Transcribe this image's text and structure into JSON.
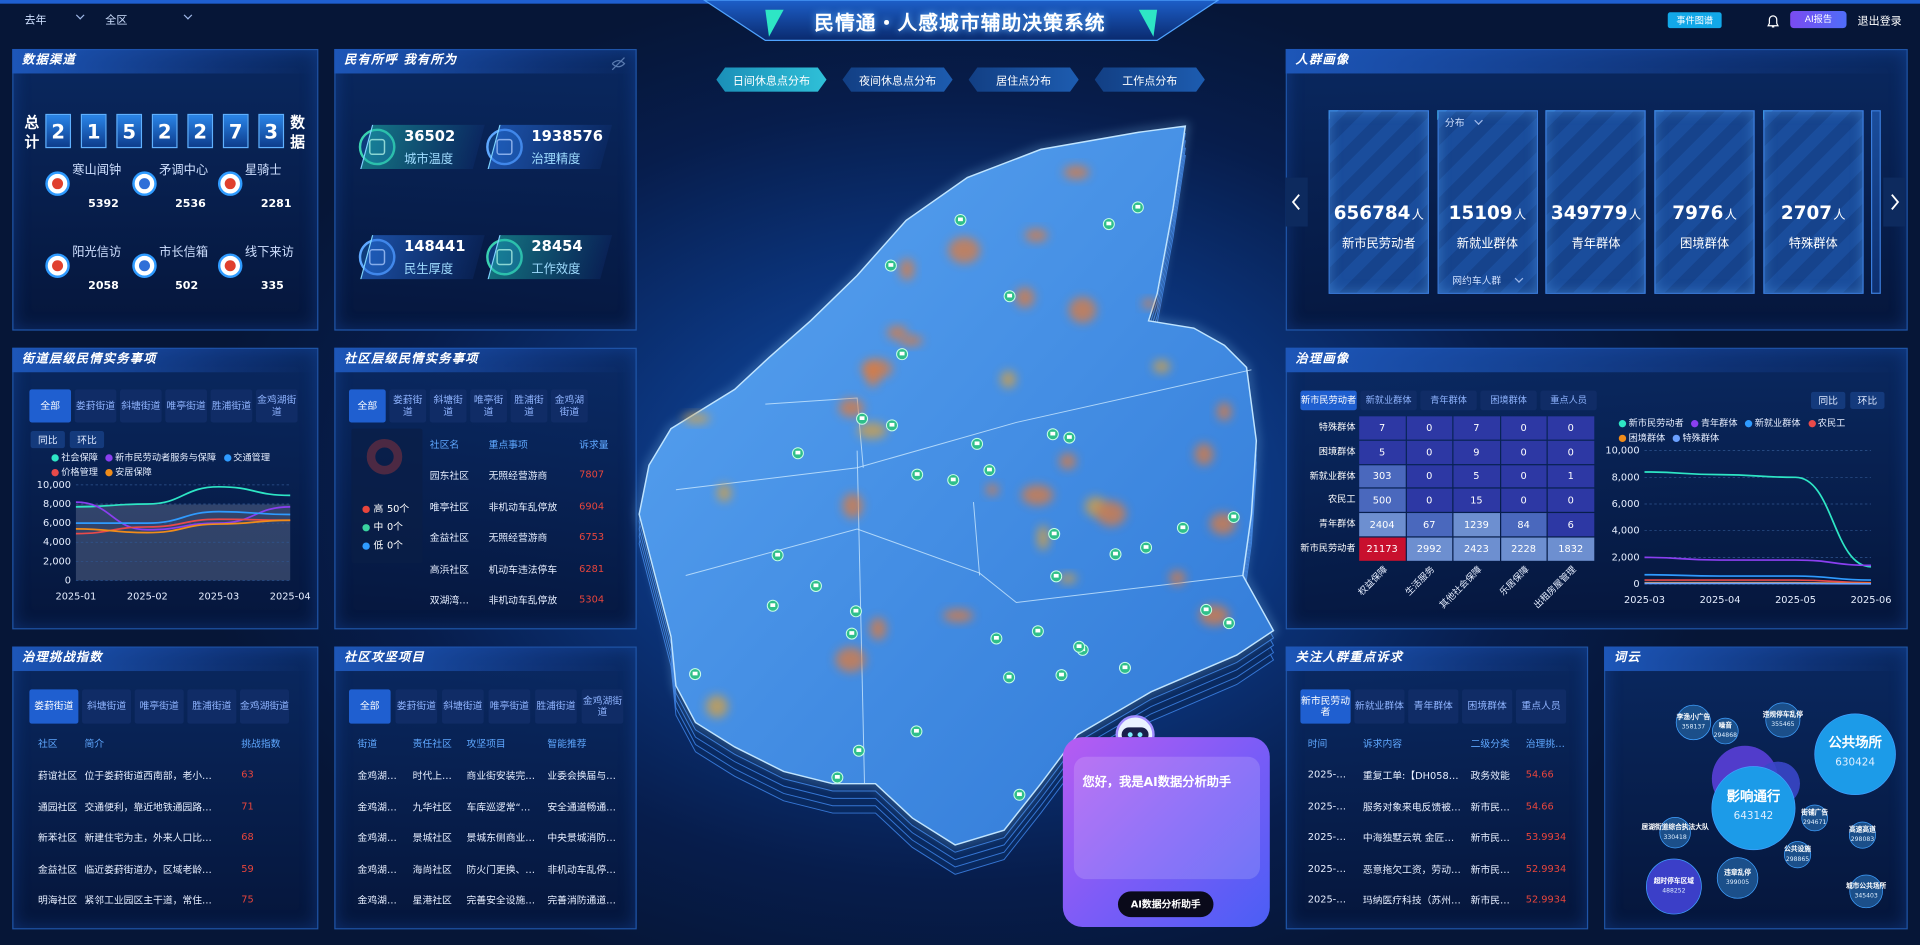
{
  "top_bar": {
    "time_filter": "去年",
    "area_filter": "全区",
    "title": "民情通・人感城市辅助决策系统",
    "event_button": "事件图谱",
    "ai_report_button": "AI报告",
    "logout": "退出登录"
  },
  "data_channels": {
    "title": "数据渠道",
    "total_label": "总计",
    "total_digits": [
      2,
      1,
      5,
      2,
      2,
      7,
      3
    ],
    "total_suffix": "数据",
    "channels": [
      {
        "name": "寒山闻钟",
        "count": 5392
      },
      {
        "name": "矛调中心",
        "count": 2536
      },
      {
        "name": "星骑士",
        "count": 2281
      },
      {
        "name": "阳光信访",
        "count": 2058
      },
      {
        "name": "市长信箱",
        "count": 502
      },
      {
        "name": "线下来访",
        "count": 335
      }
    ]
  },
  "people_livelihood": {
    "title": "民有所呼 我有所为",
    "metrics": [
      {
        "value": 36502,
        "label": "城市温度"
      },
      {
        "value": 1938576,
        "label": "治理精度"
      },
      {
        "value": 148441,
        "label": "民生厚度"
      },
      {
        "value": 28454,
        "label": "工作效度"
      }
    ]
  },
  "map": {
    "tabs": [
      "日间休息点分布",
      "夜间休息点分布",
      "居住点分布",
      "工作点分布"
    ]
  },
  "crowd_profile": {
    "title": "人群画像",
    "unit": "人",
    "dropdown": "分布",
    "sub_dropdown": "网约车人群",
    "cards": [
      {
        "value": 656784,
        "label": "新市民劳动者"
      },
      {
        "value": 15109,
        "label": "新就业群体"
      },
      {
        "value": 349779,
        "label": "青年群体"
      },
      {
        "value": 7976,
        "label": "困境群体"
      },
      {
        "value": 2707,
        "label": "特殊群体"
      }
    ]
  },
  "street_matters": {
    "title": "街道层级民情实务事项",
    "tabs": [
      "全部",
      "娄葑街道",
      "斜塘街道",
      "唯亭街道",
      "胜浦街道",
      "金鸡湖街道"
    ],
    "buttons": [
      "同比",
      "环比"
    ],
    "chart": {
      "type": "line",
      "categories": [
        "2025-01",
        "2025-02",
        "2025-03",
        "2025-04"
      ],
      "series": [
        {
          "name": "社会保障",
          "color": "#2ee6c5",
          "values": [
            7700,
            8000,
            9800,
            8900
          ]
        },
        {
          "name": "新市民劳动者服务与保障",
          "color": "#8a3ff0",
          "values": [
            8200,
            5300,
            6000,
            7700
          ]
        },
        {
          "name": "交通管理",
          "color": "#2f9bff",
          "values": [
            6000,
            6000,
            7200,
            6900
          ]
        },
        {
          "name": "价格管理",
          "color": "#e84a4a",
          "values": [
            4900,
            5600,
            6400,
            6300
          ]
        },
        {
          "name": "安居保障",
          "color": "#f08c1a",
          "values": [
            5400,
            5000,
            5900,
            6300
          ]
        }
      ],
      "ylim": [
        0,
        10000
      ],
      "yticks": [
        0,
        {
          "value": 2000,
          "label": "2,000"
        },
        {
          "value": 4000,
          "label": "4,000"
        },
        {
          "value": 6000,
          "label": "6,000"
        },
        {
          "value": 8000,
          "label": "8,000"
        },
        {
          "value": 10000,
          "label": "10,000"
        }
      ],
      "grid": true
    }
  },
  "community_matters": {
    "title": "社区层级民情实务事项",
    "tabs": [
      "全部",
      "娄葑街道",
      "斜塘街道",
      "唯亭街道",
      "胜浦街道",
      "金鸡湖街道"
    ],
    "donut": {
      "type": "pie",
      "series": [
        {
          "name": "高",
          "value": 50,
          "value_label": "50个",
          "color": "#e8453c"
        },
        {
          "name": "中",
          "value": 0,
          "value_label": "0个",
          "color": "#3ad29f"
        },
        {
          "name": "低",
          "value": 0,
          "value_label": "0个",
          "color": "#2f9bff"
        }
      ]
    },
    "table": {
      "headers": [
        "社区名",
        "重点事项",
        "诉求量"
      ],
      "rows": [
        [
          "园东社区",
          "无照经营游商",
          7807
        ],
        [
          "唯亭社区",
          "非机动车乱停放",
          6904
        ],
        [
          "金益社区",
          "无照经营游商",
          6753
        ],
        [
          "高浜社区",
          "机动车违法停车",
          6281
        ],
        [
          "双湖湾…",
          "非机动车乱停放",
          5304
        ]
      ]
    }
  },
  "governance_challenge": {
    "title": "治理挑战指数",
    "tabs": [
      "娄葑街道",
      "斜塘街道",
      "唯亭街道",
      "胜浦街道",
      "金鸡湖街道"
    ],
    "table": {
      "headers": [
        "社区",
        "简介",
        "挑战指数"
      ],
      "rows": [
        [
          "葑谊社区",
          "位于娄葑街道西南部，老小…",
          63
        ],
        [
          "通园社区",
          "交通便利，靠近地铁通园路…",
          71
        ],
        [
          "新苯社区",
          "新建住宅为主，外来人口比…",
          68
        ],
        [
          "金益社区",
          "临近娄葑街道办，区域老龄…",
          59
        ],
        [
          "明海社区",
          "紧邻工业园区主干道，常住…",
          75
        ]
      ]
    }
  },
  "community_projects": {
    "title": "社区攻坚项目",
    "tabs": [
      "全部",
      "娄葑街道",
      "斜塘街道",
      "唯亭街道",
      "胜浦街道",
      "金鸡湖街道"
    ],
    "table": {
      "headers": [
        "街道",
        "责任社区",
        "攻坚项目",
        "智能推荐"
      ],
      "rows": [
        [
          "金鸡湖…",
          "时代上…",
          "商业街安装完…",
          "业委会换届与…"
        ],
        [
          "金鸡湖…",
          "九华社区",
          "车库巡逻常“…",
          "安全通道畅通…"
        ],
        [
          "金鸡湖…",
          "景城社区",
          "景城东侧商业…",
          "中央景城消防…"
        ],
        [
          "金鸡湖…",
          "海尚社区",
          "防火门更换、…",
          "非机动车乱停…"
        ],
        [
          "金鸡湖…",
          "星港社区",
          "完善安全设施…",
          "完善消防通道…"
        ]
      ]
    }
  },
  "governance_profile": {
    "title": "治理画像",
    "tabs": [
      "新市民劳动者",
      "新就业群体",
      "青年群体",
      "困境群体",
      "重点人员"
    ],
    "buttons": [
      "同比",
      "环比"
    ],
    "heatmap": {
      "rows": [
        "特殊群体",
        "困境群体",
        "新就业群体",
        "农民工",
        "青年群体",
        "新市民劳动者"
      ],
      "columns": [
        "权益保障",
        "生活服务",
        "其他社会保障",
        "乐居保障",
        "出租房屋管理"
      ],
      "values": [
        [
          7,
          0,
          7,
          0,
          0
        ],
        [
          5,
          0,
          9,
          0,
          0
        ],
        [
          303,
          0,
          5,
          0,
          1
        ],
        [
          500,
          0,
          15,
          0,
          0
        ],
        [
          2404,
          67,
          1239,
          84,
          6
        ],
        [
          21173,
          2992,
          2423,
          2228,
          1832
        ]
      ]
    },
    "chart": {
      "type": "line",
      "categories": [
        "2025-03",
        "2025-04",
        "2025-05",
        "2025-06"
      ],
      "series": [
        {
          "name": "新市民劳动者",
          "color": "#2ee6c5",
          "values": [
            8400,
            8200,
            8000,
            1300
          ]
        },
        {
          "name": "青年群体",
          "color": "#8a3ff0",
          "values": [
            2000,
            1800,
            1800,
            1400
          ]
        },
        {
          "name": "新就业群体",
          "color": "#2f9bff",
          "values": [
            700,
            600,
            600,
            300
          ]
        },
        {
          "name": "农民工",
          "color": "#e84a4a",
          "values": [
            300,
            300,
            300,
            100
          ]
        },
        {
          "name": "困境群体",
          "color": "#f08c1a",
          "values": [
            100,
            100,
            100,
            50
          ]
        },
        {
          "name": "特殊群体",
          "color": "#6aa0ff",
          "values": [
            50,
            50,
            50,
            20
          ]
        }
      ],
      "ylim": [
        0,
        10000
      ],
      "yticks": [
        0,
        {
          "value": 2000,
          "label": "2,000"
        },
        {
          "value": 4000,
          "label": "4,000"
        },
        {
          "value": 6000,
          "label": "6,000"
        },
        {
          "value": 8000,
          "label": "8,000"
        },
        {
          "value": 10000,
          "label": "10,000"
        }
      ],
      "grid": true
    }
  },
  "focus_demands": {
    "title": "关注人群重点诉求",
    "tabs": [
      "新市民劳动者",
      "新就业群体",
      "青年群体",
      "困境群体",
      "重点人员"
    ],
    "table": {
      "headers": [
        "时间",
        "诉求内容",
        "二级分类",
        "治理挑…"
      ],
      "rows": [
        [
          "2025-…",
          "重复工单:【DH058…",
          "政务效能",
          54.66
        ],
        [
          "2025-…",
          "服务对象来电反馈被…",
          "新市民…",
          54.66
        ],
        [
          "2025-…",
          "中海独墅云筑 金匠…",
          "新市民…",
          53.9934
        ],
        [
          "2025-…",
          "恶意拖欠工资，劳动…",
          "新市民…",
          52.9934
        ],
        [
          "2025-…",
          "玛纳医疗科技（苏州…",
          "新市民…",
          52.9934
        ]
      ]
    }
  },
  "word_cloud": {
    "title": "词云",
    "words": [
      {
        "text": "李渔小广告",
        "value": 358137
      },
      {
        "text": "噪音",
        "value": 294868
      },
      {
        "text": "违规停车乱停",
        "value": 355465
      },
      {
        "text": "公共场所",
        "value": 630424
      },
      {
        "text": "影响通行",
        "value": 643142
      },
      {
        "text": "居湖街道综合执法大队",
        "value": 330418
      },
      {
        "text": "街铺广告",
        "value": 294671
      },
      {
        "text": "公共设施",
        "value": 298865
      },
      {
        "text": "高速高道",
        "value": 298083
      },
      {
        "text": "超时停车区域",
        "value": 488252
      },
      {
        "text": "违章乱停",
        "value": 399005
      },
      {
        "text": "城市公共场所",
        "value": 345403
      }
    ]
  },
  "ai_assistant": {
    "greeting": "您好，我是AI数据分析助手",
    "button": "AI数据分析助手"
  }
}
